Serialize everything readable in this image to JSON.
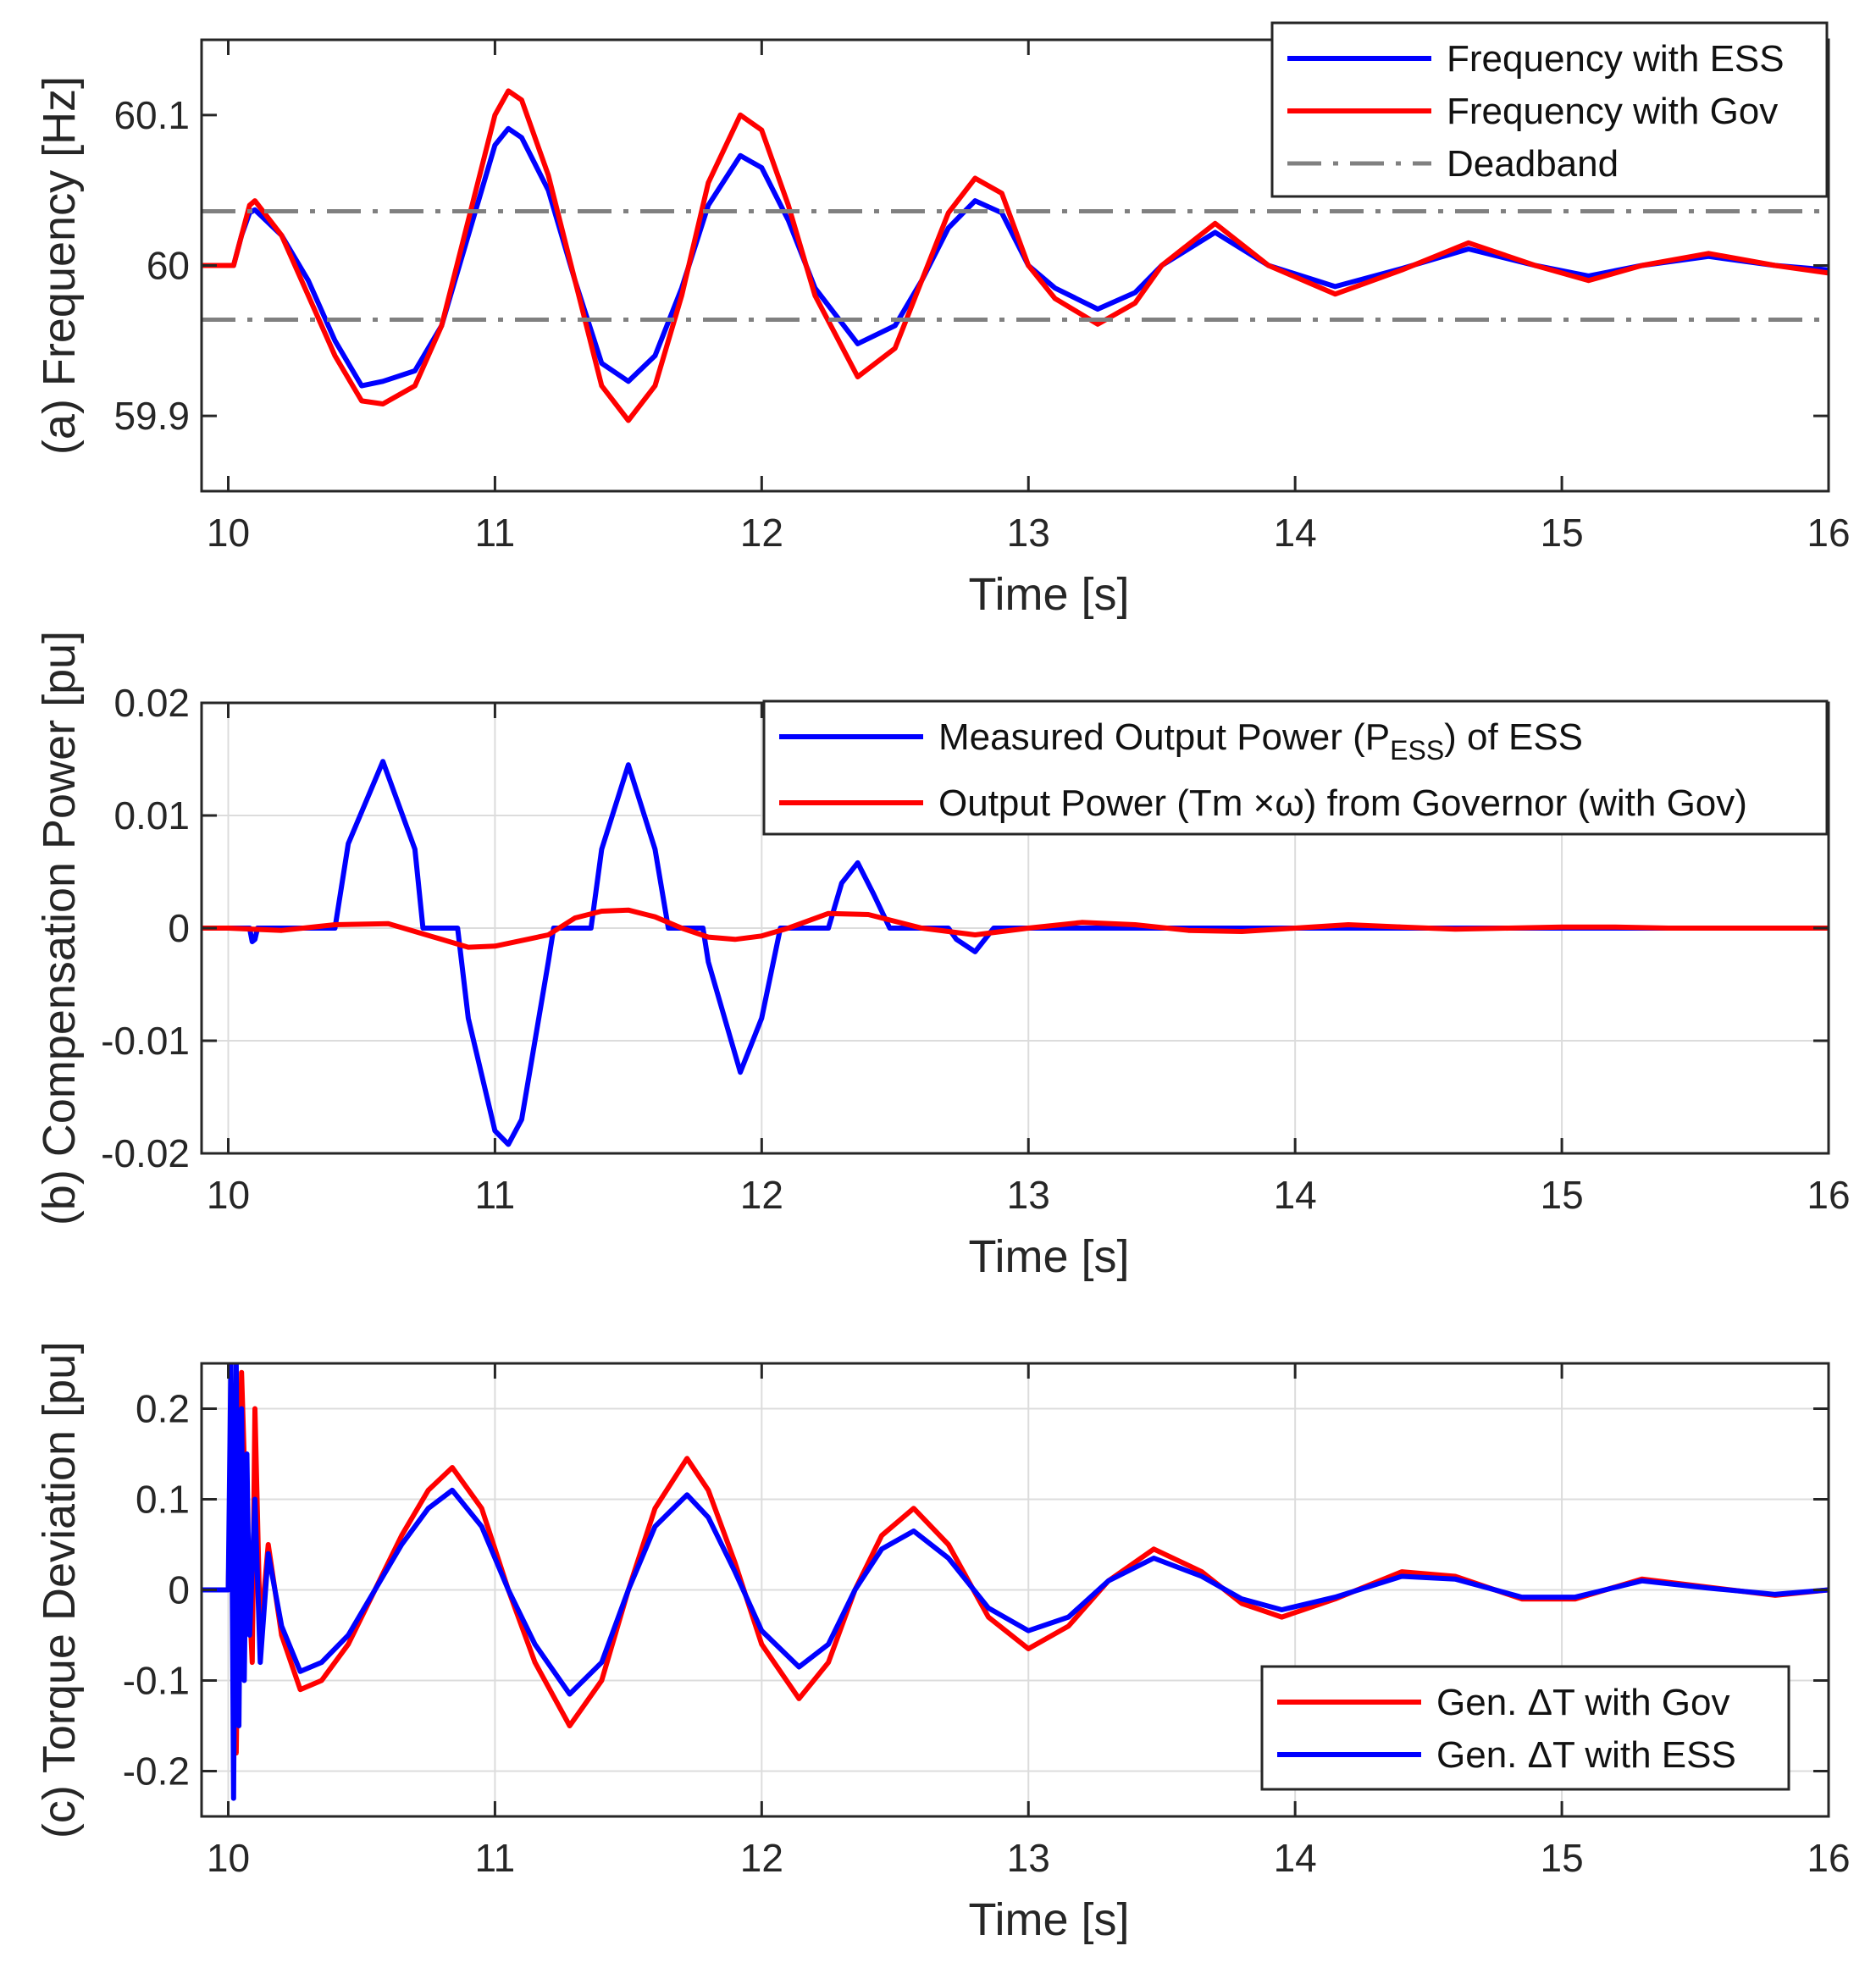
{
  "colors": {
    "blue": "#0000ff",
    "red": "#ff0000",
    "gray": "#808080",
    "axis": "#262626",
    "grid": "#dcdcdc"
  },
  "chart_data": [
    {
      "id": "a",
      "type": "line",
      "xlabel": "Time [s]",
      "ylabel": "(a) Frequency [Hz]",
      "xlim": [
        9.9,
        16
      ],
      "ylim": [
        59.85,
        60.15
      ],
      "xticks": [
        10,
        11,
        12,
        13,
        14,
        15,
        16
      ],
      "xtick_labels": [
        "10",
        "11",
        "12",
        "13",
        "14",
        "15",
        "16"
      ],
      "yticks": [
        59.9,
        60,
        60.1
      ],
      "ytick_labels": [
        "59.9",
        "60",
        "60.1"
      ],
      "grid": false,
      "legend_position": "top-right",
      "series": [
        {
          "name": "Frequency with ESS",
          "color": "#0000ff",
          "x": [
            9.9,
            10.0,
            10.02,
            10.05,
            10.08,
            10.1,
            10.2,
            10.3,
            10.4,
            10.5,
            10.58,
            10.7,
            10.8,
            10.9,
            11.0,
            11.05,
            11.1,
            11.2,
            11.3,
            11.4,
            11.5,
            11.6,
            11.7,
            11.8,
            11.92,
            12.0,
            12.1,
            12.2,
            12.36,
            12.5,
            12.6,
            12.7,
            12.8,
            12.9,
            13.0,
            13.1,
            13.26,
            13.4,
            13.5,
            13.7,
            13.9,
            14.15,
            14.4,
            14.65,
            14.9,
            15.1,
            15.3,
            15.55,
            15.8,
            16.0
          ],
          "y": [
            60.0,
            60.0,
            60.0,
            60.02,
            60.035,
            60.037,
            60.02,
            59.99,
            59.95,
            59.92,
            59.923,
            59.93,
            59.96,
            60.02,
            60.08,
            60.091,
            60.085,
            60.05,
            59.99,
            59.935,
            59.923,
            59.94,
            59.985,
            60.04,
            60.073,
            60.065,
            60.03,
            59.985,
            59.948,
            59.96,
            59.99,
            60.025,
            60.043,
            60.035,
            60.0,
            59.985,
            59.971,
            59.982,
            60.0,
            60.022,
            60.0,
            59.986,
            59.998,
            60.011,
            60.0,
            59.993,
            60.0,
            60.006,
            60.0,
            59.997
          ]
        },
        {
          "name": "Frequency with Gov",
          "color": "#ff0000",
          "x": [
            9.9,
            10.0,
            10.02,
            10.05,
            10.08,
            10.1,
            10.2,
            10.3,
            10.4,
            10.5,
            10.58,
            10.7,
            10.8,
            10.9,
            11.0,
            11.05,
            11.1,
            11.2,
            11.3,
            11.4,
            11.5,
            11.6,
            11.7,
            11.8,
            11.92,
            12.0,
            12.1,
            12.2,
            12.36,
            12.5,
            12.6,
            12.7,
            12.8,
            12.9,
            13.0,
            13.1,
            13.26,
            13.4,
            13.5,
            13.7,
            13.9,
            14.15,
            14.4,
            14.65,
            14.9,
            15.1,
            15.3,
            15.55,
            15.8,
            16.0
          ],
          "y": [
            60.0,
            60.0,
            60.0,
            60.02,
            60.04,
            60.043,
            60.02,
            59.98,
            59.94,
            59.91,
            59.908,
            59.92,
            59.96,
            60.03,
            60.1,
            60.116,
            60.11,
            60.06,
            59.99,
            59.92,
            59.897,
            59.92,
            59.98,
            60.055,
            60.1,
            60.09,
            60.04,
            59.98,
            59.926,
            59.945,
            59.99,
            60.035,
            60.058,
            60.048,
            60.0,
            59.978,
            59.961,
            59.975,
            60.0,
            60.028,
            60.0,
            59.981,
            59.997,
            60.015,
            60.0,
            59.99,
            60.0,
            60.008,
            60.0,
            59.995
          ]
        },
        {
          "name": "Deadband",
          "color": "#808080",
          "style": "dash-dot",
          "x": [
            9.9,
            16.0
          ],
          "y": [
            60.036,
            60.036
          ]
        },
        {
          "name": "",
          "color": "#808080",
          "style": "dash-dot",
          "x": [
            9.9,
            16.0
          ],
          "y": [
            59.964,
            59.964
          ]
        }
      ]
    },
    {
      "id": "b",
      "type": "line",
      "xlabel": "Time [s]",
      "ylabel": "(b) Compensation Power  [pu]",
      "xlim": [
        9.9,
        16
      ],
      "ylim": [
        -0.02,
        0.02
      ],
      "xticks": [
        10,
        11,
        12,
        13,
        14,
        15,
        16
      ],
      "xtick_labels": [
        "10",
        "11",
        "12",
        "13",
        "14",
        "15",
        "16"
      ],
      "yticks": [
        -0.02,
        -0.01,
        0,
        0.01,
        0.02
      ],
      "ytick_labels": [
        "-0.02",
        "-0.01",
        "0",
        "0.01",
        "0.02"
      ],
      "grid": true,
      "legend_position": "top-right",
      "series": [
        {
          "name": "Measured Output Power (P",
          "name_sub": "ESS",
          "name_suffix": ") of ESS",
          "color": "#0000ff",
          "x": [
            9.9,
            10.08,
            10.09,
            10.1,
            10.11,
            10.4,
            10.45,
            10.58,
            10.7,
            10.73,
            10.86,
            10.9,
            11.0,
            11.05,
            11.1,
            11.2,
            11.22,
            11.36,
            11.4,
            11.5,
            11.6,
            11.65,
            11.78,
            11.8,
            11.92,
            12.0,
            12.07,
            12.25,
            12.3,
            12.36,
            12.42,
            12.48,
            12.7,
            12.73,
            12.8,
            12.87,
            16.0
          ],
          "y": [
            0.0,
            0.0,
            -0.0012,
            -0.001,
            0.0,
            0.0,
            0.0075,
            0.0148,
            0.007,
            0.0,
            0.0,
            -0.008,
            -0.018,
            -0.0192,
            -0.017,
            -0.003,
            0.0,
            0.0,
            0.007,
            0.0145,
            0.007,
            0.0,
            0.0,
            -0.003,
            -0.0128,
            -0.008,
            0.0,
            0.0,
            0.004,
            0.0058,
            0.003,
            0.0,
            0.0,
            -0.001,
            -0.0021,
            0.0,
            0.0
          ]
        },
        {
          "name": "Output Power (Tm ×ω) from Governor (with Gov)",
          "color": "#ff0000",
          "x": [
            9.9,
            10.0,
            10.2,
            10.4,
            10.6,
            10.8,
            10.9,
            11.0,
            11.2,
            11.3,
            11.4,
            11.5,
            11.6,
            11.7,
            11.8,
            11.9,
            12.0,
            12.1,
            12.25,
            12.4,
            12.6,
            12.8,
            12.9,
            13.0,
            13.2,
            13.4,
            13.6,
            13.8,
            14.0,
            14.2,
            14.4,
            14.6,
            14.8,
            15.0,
            15.2,
            15.4,
            15.6,
            15.8,
            16.0
          ],
          "y": [
            0.0,
            0.0,
            -0.0002,
            0.0003,
            0.0004,
            -0.001,
            -0.0017,
            -0.0016,
            -0.0006,
            0.0009,
            0.0015,
            0.0016,
            0.001,
            0.0,
            -0.0008,
            -0.001,
            -0.0007,
            0.0,
            0.0013,
            0.0012,
            0.0,
            -0.0006,
            -0.0003,
            0.0,
            0.0005,
            0.0003,
            -0.0002,
            -0.0003,
            0.0,
            0.0003,
            0.0001,
            -0.0001,
            0.0,
            0.0001,
            0.0001,
            0.0,
            0.0,
            0.0,
            0.0
          ]
        }
      ]
    },
    {
      "id": "c",
      "type": "line",
      "xlabel": "Time [s]",
      "ylabel": "(c) Torque Deviation [pu]",
      "xlim": [
        9.9,
        16
      ],
      "ylim": [
        -0.25,
        0.25
      ],
      "xticks": [
        10,
        11,
        12,
        13,
        14,
        15,
        16
      ],
      "xtick_labels": [
        "10",
        "11",
        "12",
        "13",
        "14",
        "15",
        "16"
      ],
      "yticks": [
        -0.2,
        -0.1,
        0,
        0.1,
        0.2
      ],
      "ytick_labels": [
        "-0.2",
        "-0.1",
        "0",
        "0.1",
        "0.2"
      ],
      "grid": true,
      "legend_position": "bottom-right",
      "series": [
        {
          "name": "Gen. ΔT with Gov",
          "color": "#ff0000",
          "x": [
            9.9,
            10.0,
            10.01,
            10.03,
            10.05,
            10.07,
            10.09,
            10.1,
            10.12,
            10.15,
            10.2,
            10.27,
            10.35,
            10.45,
            10.55,
            10.65,
            10.75,
            10.84,
            10.95,
            11.05,
            11.15,
            11.28,
            11.4,
            11.5,
            11.6,
            11.72,
            11.8,
            11.9,
            12.0,
            12.14,
            12.25,
            12.35,
            12.45,
            12.57,
            12.7,
            12.85,
            13.0,
            13.15,
            13.3,
            13.47,
            13.65,
            13.8,
            13.95,
            14.15,
            14.4,
            14.6,
            14.85,
            15.05,
            15.3,
            15.55,
            15.8,
            16.0
          ],
          "y": [
            0.0,
            0.0,
            0.15,
            -0.18,
            0.24,
            0.05,
            -0.08,
            0.2,
            -0.05,
            0.05,
            -0.05,
            -0.11,
            -0.1,
            -0.06,
            0.0,
            0.06,
            0.11,
            0.135,
            0.09,
            0.0,
            -0.08,
            -0.15,
            -0.1,
            0.0,
            0.09,
            0.145,
            0.11,
            0.03,
            -0.06,
            -0.12,
            -0.08,
            0.0,
            0.06,
            0.09,
            0.05,
            -0.03,
            -0.065,
            -0.04,
            0.01,
            0.045,
            0.02,
            -0.015,
            -0.03,
            -0.01,
            0.02,
            0.015,
            -0.01,
            -0.01,
            0.012,
            0.003,
            -0.006,
            0.0
          ]
        },
        {
          "name": "Gen. ΔT with ESS",
          "color": "#0000ff",
          "x": [
            9.9,
            10.0,
            10.01,
            10.02,
            10.03,
            10.04,
            10.05,
            10.06,
            10.07,
            10.08,
            10.1,
            10.12,
            10.15,
            10.2,
            10.27,
            10.35,
            10.45,
            10.55,
            10.65,
            10.75,
            10.84,
            10.95,
            11.05,
            11.15,
            11.28,
            11.4,
            11.5,
            11.6,
            11.72,
            11.8,
            11.9,
            12.0,
            12.14,
            12.25,
            12.35,
            12.45,
            12.57,
            12.7,
            12.85,
            13.0,
            13.15,
            13.3,
            13.47,
            13.65,
            13.8,
            13.95,
            14.15,
            14.4,
            14.6,
            14.85,
            15.05,
            15.3,
            15.55,
            15.8,
            16.0
          ],
          "y": [
            0.0,
            0.0,
            0.25,
            -0.23,
            0.25,
            -0.15,
            0.2,
            -0.1,
            0.15,
            -0.05,
            0.1,
            -0.08,
            0.04,
            -0.04,
            -0.09,
            -0.08,
            -0.05,
            0.0,
            0.05,
            0.09,
            0.11,
            0.07,
            0.0,
            -0.06,
            -0.115,
            -0.08,
            0.0,
            0.07,
            0.105,
            0.08,
            0.02,
            -0.045,
            -0.085,
            -0.06,
            0.0,
            0.045,
            0.065,
            0.035,
            -0.02,
            -0.045,
            -0.03,
            0.01,
            0.035,
            0.015,
            -0.01,
            -0.022,
            -0.008,
            0.015,
            0.012,
            -0.008,
            -0.008,
            0.01,
            0.002,
            -0.005,
            0.0
          ]
        }
      ]
    }
  ]
}
